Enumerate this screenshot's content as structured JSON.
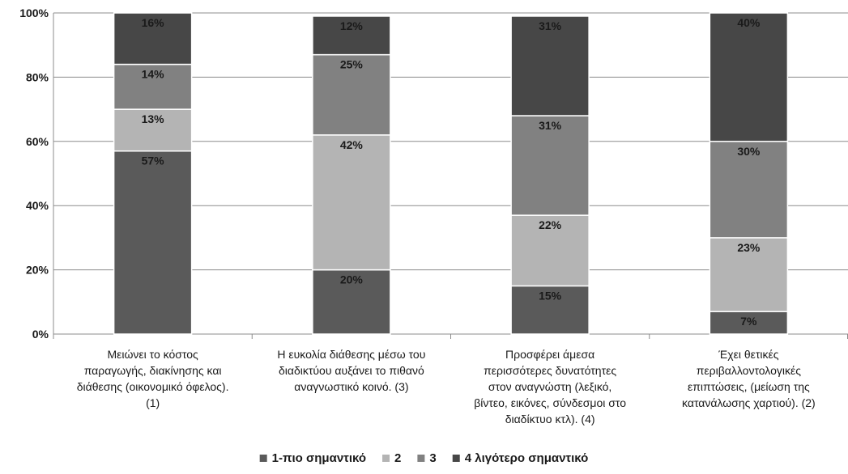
{
  "chart_data": {
    "type": "bar",
    "stacked": true,
    "percent": true,
    "categories": [
      [
        "Μειώνει το κόστος",
        "παραγωγής, διακίνησης και",
        "διάθεσης (οικονομικό όφελος).",
        "(1)"
      ],
      [
        "Η ευκολία διάθεσης μέσω του",
        "διαδικτύου αυξάνει το πιθανό",
        "αναγνωστικό κοινό. (3)"
      ],
      [
        "Προσφέρει άμεσα",
        "περισσότερες δυνατότητες",
        "στον αναγνώστη (λεξικό,",
        "βίντεο, εικόνες, σύνδεσμοι στο",
        "διαδίκτυο κτλ). (4)"
      ],
      [
        "Έχει θετικές",
        "περιβαλλοντολογικές",
        "επιπτώσεις, (μείωση της",
        "κατανάλωσης χαρτιού). (2)"
      ]
    ],
    "series": [
      {
        "name": "1-πιο σημαντικό",
        "values": [
          57,
          20,
          15,
          7
        ],
        "color": "#5a5a5a"
      },
      {
        "name": "2",
        "values": [
          13,
          42,
          22,
          23
        ],
        "color": "#b4b4b4"
      },
      {
        "name": "3",
        "values": [
          14,
          25,
          31,
          30
        ],
        "color": "#818181"
      },
      {
        "name": "4 λιγότερο σημαντικό",
        "values": [
          16,
          12,
          31,
          40
        ],
        "color": "#474747"
      }
    ],
    "data_labels": [
      [
        "57%",
        "13%",
        "14%",
        "16%"
      ],
      [
        "20%",
        "42%",
        "25%",
        "12%"
      ],
      [
        "15%",
        "22%",
        "31%",
        "31%"
      ],
      [
        "7%",
        "23%",
        "30%",
        "40%"
      ]
    ],
    "yticks": [
      "0%",
      "20%",
      "40%",
      "60%",
      "80%",
      "100%"
    ],
    "ylim": [
      0,
      100
    ],
    "grid": true,
    "legend_position": "bottom"
  }
}
